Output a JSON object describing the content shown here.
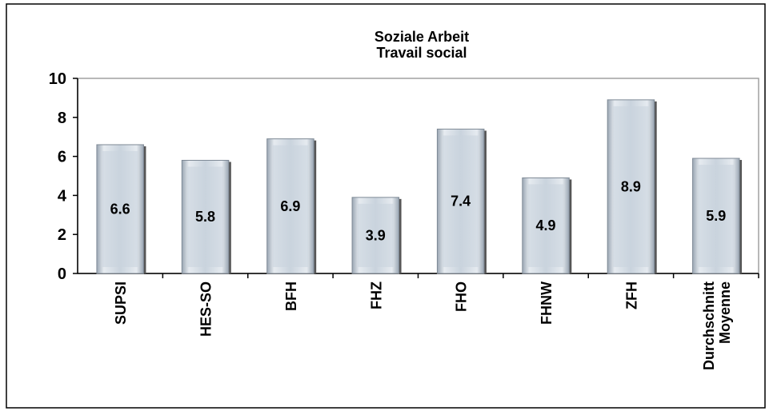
{
  "chart_data": {
    "type": "bar",
    "title": "Soziale Arbeit\nTravail social",
    "categories": [
      "SUPSI",
      "HES-SO",
      "BFH",
      "FHZ",
      "FHO",
      "FHNW",
      "ZFH",
      "Durchschnitt\nMoyenne"
    ],
    "values": [
      6.6,
      5.8,
      6.9,
      3.9,
      7.4,
      4.9,
      8.9,
      5.9
    ],
    "color": "#c9d3dd",
    "ylim": [
      0,
      10
    ],
    "yticks": [
      0,
      2,
      4,
      6,
      8,
      10
    ],
    "grid": false
  }
}
